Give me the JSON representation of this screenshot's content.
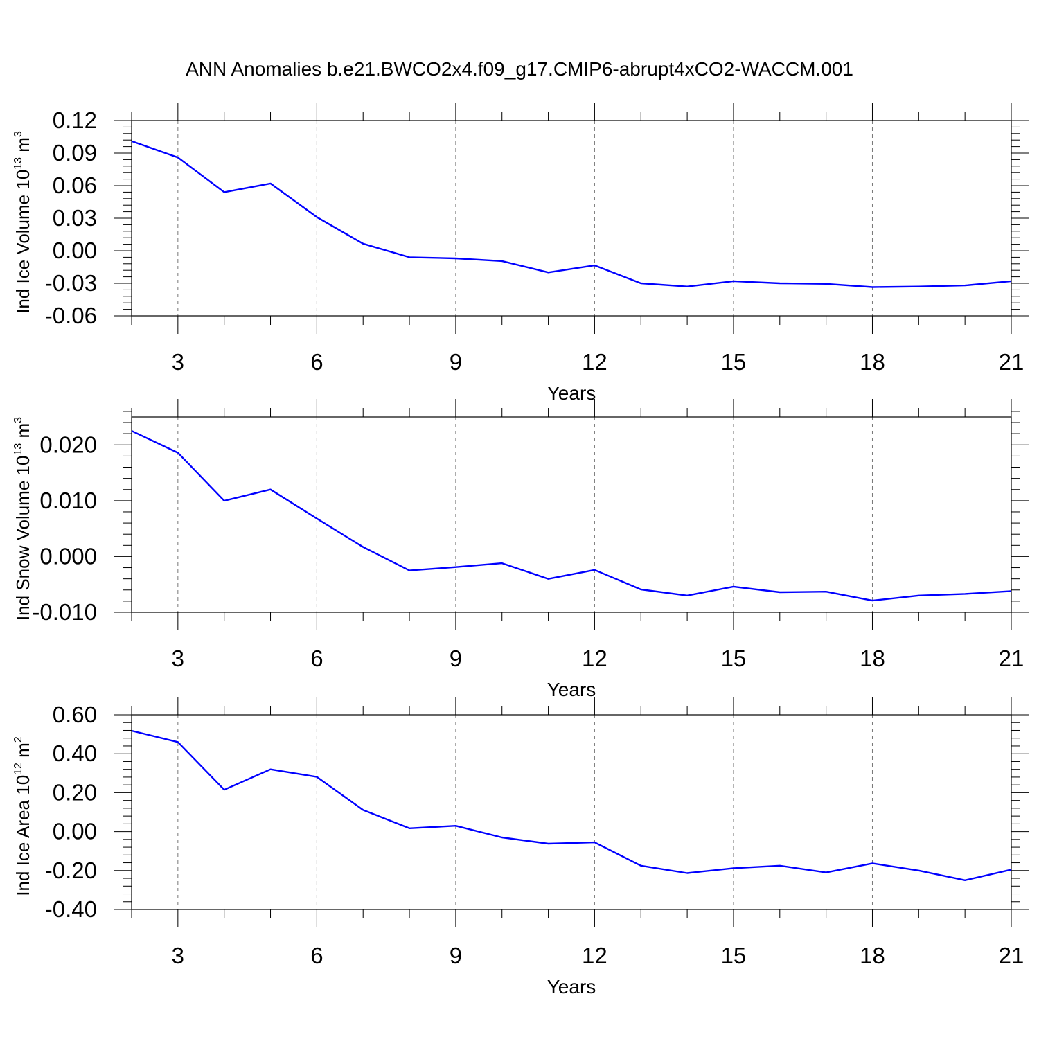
{
  "title": "ANN Anomalies b.e21.BWCO2x4.f09_g17.CMIP6-abrupt4xCO2-WACCM.001",
  "line_color": "#0000ff",
  "chart_data": [
    {
      "type": "line",
      "ylabel_main": "Ind Ice Volume 10",
      "ylabel_exp": "13",
      "ylabel_unit": "m",
      "ylabel_unit_exp": "3",
      "xlabel": "Years",
      "xlim": [
        2,
        21
      ],
      "ylim": [
        -0.06,
        0.12
      ],
      "yticks": [
        -0.06,
        -0.03,
        0.0,
        0.03,
        0.06,
        0.09,
        0.12
      ],
      "ytick_labels": [
        "-0.06",
        "-0.03",
        "0.00",
        "0.03",
        "0.06",
        "0.09",
        "0.12"
      ],
      "xticks": [
        3,
        6,
        9,
        12,
        15,
        18,
        21
      ],
      "xtick_labels": [
        "3",
        "6",
        "9",
        "12",
        "15",
        "18",
        "21"
      ],
      "grid": "dashed vertical at major x ticks",
      "x": [
        2,
        3,
        4,
        5,
        6,
        7,
        8,
        9,
        10,
        11,
        12,
        13,
        14,
        15,
        16,
        17,
        18,
        19,
        20,
        21
      ],
      "values": [
        0.101,
        0.086,
        0.054,
        0.062,
        0.031,
        0.0065,
        -0.006,
        -0.007,
        -0.0095,
        -0.02,
        -0.0135,
        -0.03,
        -0.033,
        -0.028,
        -0.03,
        -0.0305,
        -0.0335,
        -0.033,
        -0.032,
        -0.028
      ]
    },
    {
      "type": "line",
      "ylabel_main": "Ind Snow Volume 10",
      "ylabel_exp": "13",
      "ylabel_unit": "m",
      "ylabel_unit_exp": "3",
      "xlabel": "Years",
      "xlim": [
        2,
        21
      ],
      "ylim": [
        -0.01,
        0.025
      ],
      "yticks": [
        -0.01,
        0.0,
        0.01,
        0.02
      ],
      "ytick_labels": [
        "-0.010",
        "0.000",
        "0.010",
        "0.020"
      ],
      "xticks": [
        3,
        6,
        9,
        12,
        15,
        18,
        21
      ],
      "xtick_labels": [
        "3",
        "6",
        "9",
        "12",
        "15",
        "18",
        "21"
      ],
      "grid": "dashed vertical at major x ticks",
      "x": [
        2,
        3,
        4,
        5,
        6,
        7,
        8,
        9,
        10,
        11,
        12,
        13,
        14,
        15,
        16,
        17,
        18,
        19,
        20,
        21
      ],
      "values": [
        0.0225,
        0.0186,
        0.01,
        0.012,
        0.0068,
        0.0017,
        -0.0025,
        -0.0019,
        -0.0012,
        -0.004,
        -0.0024,
        -0.0059,
        -0.007,
        -0.0054,
        -0.0064,
        -0.0063,
        -0.0079,
        -0.007,
        -0.0067,
        -0.0062
      ]
    },
    {
      "type": "line",
      "ylabel_main": "Ind Ice Area 10",
      "ylabel_exp": "12",
      "ylabel_unit": "m",
      "ylabel_unit_exp": "2",
      "xlabel": "Years",
      "xlim": [
        2,
        21
      ],
      "ylim": [
        -0.4,
        0.6
      ],
      "yticks": [
        -0.4,
        -0.2,
        0.0,
        0.2,
        0.4,
        0.6
      ],
      "ytick_labels": [
        "-0.40",
        "-0.20",
        "0.00",
        "0.20",
        "0.40",
        "0.60"
      ],
      "xticks": [
        3,
        6,
        9,
        12,
        15,
        18,
        21
      ],
      "xtick_labels": [
        "3",
        "6",
        "9",
        "12",
        "15",
        "18",
        "21"
      ],
      "grid": "dashed vertical at major x ticks",
      "x": [
        2,
        3,
        4,
        5,
        6,
        7,
        8,
        9,
        10,
        11,
        12,
        13,
        14,
        15,
        16,
        17,
        18,
        19,
        20,
        21
      ],
      "values": [
        0.518,
        0.46,
        0.215,
        0.32,
        0.281,
        0.111,
        0.017,
        0.03,
        -0.03,
        -0.062,
        -0.055,
        -0.175,
        -0.213,
        -0.188,
        -0.175,
        -0.21,
        -0.163,
        -0.2,
        -0.25,
        -0.195
      ]
    }
  ]
}
